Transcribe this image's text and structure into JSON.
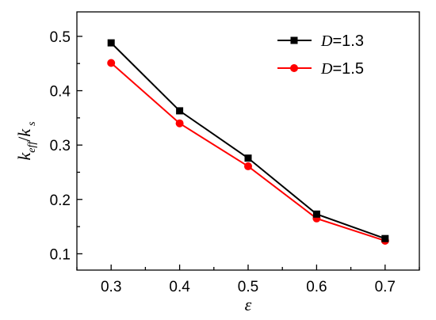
{
  "chart_data": {
    "type": "line",
    "x": [
      0.3,
      0.4,
      0.5,
      0.6,
      0.7
    ],
    "series": [
      {
        "name": "D=1.3",
        "name_var": "D",
        "name_rest": "=1.3",
        "color": "#000000",
        "marker": "square",
        "values": [
          0.488,
          0.363,
          0.276,
          0.173,
          0.128
        ]
      },
      {
        "name": "D=1.5",
        "name_var": "D",
        "name_rest": "=1.5",
        "color": "#ff0000",
        "marker": "circle",
        "values": [
          0.451,
          0.34,
          0.261,
          0.165,
          0.124
        ]
      }
    ],
    "xlabel": "ε",
    "ylabel": {
      "base1": "k",
      "sub1": "eff",
      "slash": "/",
      "base2": "k",
      "sub2": "s"
    },
    "xlim": [
      0.25,
      0.75
    ],
    "ylim": [
      0.07,
      0.545
    ],
    "xticks": [
      "0.3",
      "0.4",
      "0.5",
      "0.6",
      "0.7"
    ],
    "yticks": [
      "0.1",
      "0.2",
      "0.3",
      "0.4",
      "0.5"
    ],
    "grid": false,
    "legend_position": "top-right"
  }
}
